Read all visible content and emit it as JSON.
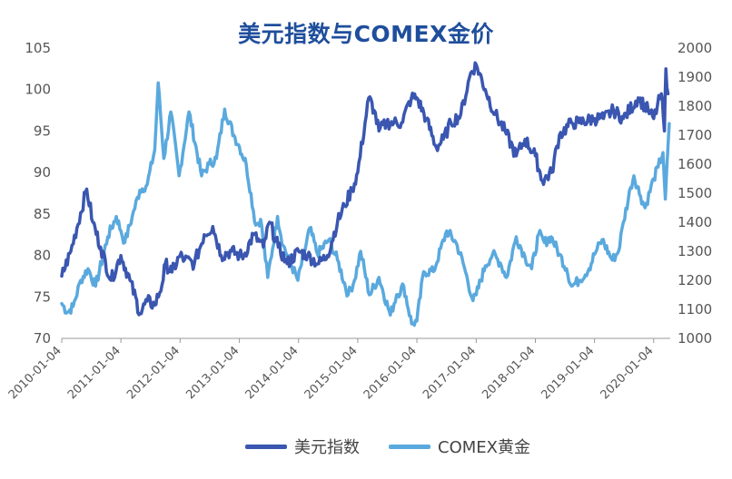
{
  "chart_data": {
    "type": "line",
    "title": "美元指数与COMEX金价",
    "xlabel": "",
    "ylabel_left": "",
    "ylabel_right": "",
    "y_left_lim": [
      70,
      105
    ],
    "y_left_ticks": [
      70,
      75,
      80,
      85,
      90,
      95,
      100,
      105
    ],
    "y_right_lim": [
      1000,
      2000
    ],
    "y_right_ticks": [
      1000,
      1100,
      1200,
      1300,
      1400,
      1500,
      1600,
      1700,
      1800,
      1900,
      2000
    ],
    "x_ticks": [
      "2010-01-04",
      "2011-01-04",
      "2012-01-04",
      "2013-01-04",
      "2014-01-04",
      "2015-01-04",
      "2016-01-04",
      "2017-01-04",
      "2018-01-04",
      "2019-01-04",
      "2020-01-04"
    ],
    "grid": false,
    "legend_position": "bottom",
    "series": [
      {
        "name": "美元指数",
        "axis": "left",
        "color": "#3a56b0",
        "x": [
          "2010-01-04",
          "2010-03-01",
          "2010-06-07",
          "2010-07-15",
          "2010-09-01",
          "2010-11-04",
          "2011-01-04",
          "2011-03-01",
          "2011-05-02",
          "2011-06-15",
          "2011-08-01",
          "2011-09-15",
          "2011-10-05",
          "2011-11-15",
          "2012-01-04",
          "2012-02-01",
          "2012-04-01",
          "2012-06-01",
          "2012-07-24",
          "2012-09-14",
          "2012-11-15",
          "2013-01-04",
          "2013-02-01",
          "2013-04-01",
          "2013-06-01",
          "2013-07-09",
          "2013-09-01",
          "2013-10-25",
          "2014-01-04",
          "2014-03-01",
          "2014-05-08",
          "2014-07-01",
          "2014-09-01",
          "2014-10-15",
          "2014-12-01",
          "2015-01-04",
          "2015-03-13",
          "2015-04-15",
          "2015-05-15",
          "2015-07-01",
          "2015-08-15",
          "2015-10-01",
          "2015-12-01",
          "2016-01-04",
          "2016-03-01",
          "2016-05-03",
          "2016-06-15",
          "2016-08-01",
          "2016-10-01",
          "2016-12-01",
          "2017-01-04",
          "2017-03-01",
          "2017-05-01",
          "2017-07-01",
          "2017-09-08",
          "2017-11-01",
          "2018-01-04",
          "2018-02-16",
          "2018-04-15",
          "2018-06-01",
          "2018-08-15",
          "2018-10-01",
          "2019-01-04",
          "2019-03-01",
          "2019-05-01",
          "2019-07-01",
          "2019-09-30",
          "2019-12-01",
          "2020-01-04",
          "2020-02-20",
          "2020-03-10",
          "2020-03-19",
          "2020-04-01"
        ],
        "values": [
          77.5,
          80.5,
          88,
          84,
          81,
          77,
          80,
          77,
          73,
          74.5,
          74,
          76.5,
          79,
          78,
          80,
          79.5,
          79,
          82.5,
          83.5,
          80,
          80.5,
          80,
          80,
          82.5,
          81,
          84,
          81,
          79,
          80.5,
          80,
          79,
          80,
          84,
          86,
          88,
          90,
          99,
          97.5,
          95,
          96,
          96,
          96,
          99,
          99,
          96.5,
          93,
          94,
          96,
          97,
          102,
          103,
          100,
          97,
          95,
          92,
          94,
          92,
          89,
          90,
          94.5,
          96,
          96,
          96.5,
          96.5,
          97.5,
          96.5,
          99,
          97.5,
          96.5,
          99.5,
          95,
          102.5,
          99.5
        ]
      },
      {
        "name": "COMEX黄金",
        "axis": "right",
        "color": "#5aa9de",
        "x": [
          "2010-01-04",
          "2010-02-08",
          "2010-03-15",
          "2010-05-01",
          "2010-06-15",
          "2010-08-01",
          "2010-10-15",
          "2010-12-07",
          "2011-01-04",
          "2011-01-28",
          "2011-03-15",
          "2011-05-01",
          "2011-06-15",
          "2011-08-01",
          "2011-08-22",
          "2011-09-26",
          "2011-11-08",
          "2011-12-29",
          "2012-02-28",
          "2012-05-16",
          "2012-07-01",
          "2012-08-15",
          "2012-10-05",
          "2012-12-01",
          "2013-01-04",
          "2013-02-15",
          "2013-04-15",
          "2013-05-15",
          "2013-06-28",
          "2013-08-27",
          "2013-10-01",
          "2013-12-31",
          "2014-03-14",
          "2014-05-01",
          "2014-07-10",
          "2014-09-01",
          "2014-11-06",
          "2014-12-15",
          "2015-01-22",
          "2015-03-17",
          "2015-05-15",
          "2015-07-24",
          "2015-09-01",
          "2015-10-15",
          "2015-12-03",
          "2016-01-04",
          "2016-02-15",
          "2016-04-15",
          "2016-07-06",
          "2016-09-01",
          "2016-10-15",
          "2016-12-15",
          "2017-01-04",
          "2017-03-01",
          "2017-04-15",
          "2017-06-01",
          "2017-07-10",
          "2017-09-08",
          "2017-11-01",
          "2017-12-12",
          "2018-01-25",
          "2018-03-01",
          "2018-04-11",
          "2018-06-01",
          "2018-07-15",
          "2018-08-16",
          "2018-10-01",
          "2018-12-01",
          "2019-01-04",
          "2019-02-20",
          "2019-04-23",
          "2019-06-01",
          "2019-07-01",
          "2019-08-15",
          "2019-09-04",
          "2019-10-15",
          "2019-11-12",
          "2020-01-04",
          "2020-01-31",
          "2020-03-01",
          "2020-03-16",
          "2020-04-09"
        ],
        "values": [
          1120,
          1090,
          1110,
          1200,
          1240,
          1180,
          1350,
          1420,
          1370,
          1330,
          1420,
          1510,
          1530,
          1650,
          1880,
          1620,
          1780,
          1560,
          1780,
          1560,
          1600,
          1620,
          1790,
          1700,
          1660,
          1600,
          1390,
          1410,
          1210,
          1420,
          1320,
          1200,
          1380,
          1290,
          1340,
          1270,
          1150,
          1200,
          1300,
          1150,
          1210,
          1080,
          1150,
          1180,
          1050,
          1060,
          1230,
          1230,
          1370,
          1330,
          1260,
          1130,
          1150,
          1250,
          1290,
          1260,
          1210,
          1350,
          1280,
          1240,
          1360,
          1330,
          1350,
          1290,
          1240,
          1180,
          1200,
          1240,
          1290,
          1340,
          1270,
          1300,
          1400,
          1520,
          1560,
          1490,
          1450,
          1550,
          1590,
          1640,
          1480,
          1740
        ]
      }
    ]
  },
  "legend": [
    {
      "label": "美元指数",
      "color": "#3a56b0"
    },
    {
      "label": "COMEX黄金",
      "color": "#5aa9de"
    }
  ]
}
